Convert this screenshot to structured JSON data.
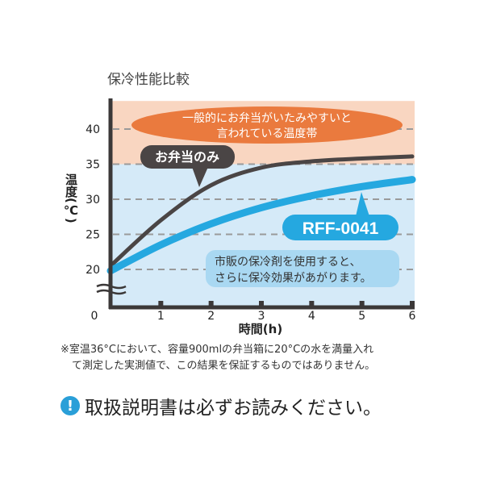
{
  "chart_data": {
    "type": "line",
    "title": "保冷性能比較",
    "xlabel": "時間(h)",
    "ylabel": "温度(℃)",
    "x": [
      0,
      1,
      2,
      3,
      4,
      5,
      6
    ],
    "x_ticks": [
      "0",
      "1",
      "2",
      "3",
      "4",
      "5",
      "6"
    ],
    "y_ticks": [
      "20",
      "25",
      "30",
      "35",
      "40"
    ],
    "xlim": [
      0,
      6
    ],
    "ylim": [
      15,
      44
    ],
    "y_axis_break": true,
    "grid": "horizontal dashed",
    "series": [
      {
        "name": "お弁当のみ",
        "values": [
          20.5,
          27,
          32,
          34.5,
          35.4,
          35.8,
          36.1
        ],
        "color": "#4a4545"
      },
      {
        "name": "RFF-0041",
        "values": [
          19.8,
          23.5,
          26.5,
          28.8,
          30.5,
          31.8,
          32.8
        ],
        "color": "#25a8e0"
      }
    ],
    "bands": [
      {
        "from": 35,
        "to": 44,
        "color": "#f9d6c1",
        "label": [
          "一般的にお弁当がいたみやすいと",
          "言われている温度帯"
        ]
      },
      {
        "from": 15,
        "to": 35,
        "color": "#d5eaf8"
      }
    ],
    "annotation": [
      "市販の保冷剤を使用すると、",
      "さらに保冷効果があがります。"
    ]
  },
  "footnote": [
    "※室温36°Cにおいて、容量900mlの弁当箱に20°Cの水を満量入れ",
    "て測定した実測値で、この結果を保証するものではありません。"
  ],
  "notice": {
    "icon": "exclamation-icon",
    "text": "取扱説明書は必ずお読みください。"
  },
  "colors": {
    "orange_bubble": "#ea7a3e",
    "dark_bubble": "#4a4545",
    "blue": "#25a8e0",
    "info_box": "#a9d8f2"
  }
}
